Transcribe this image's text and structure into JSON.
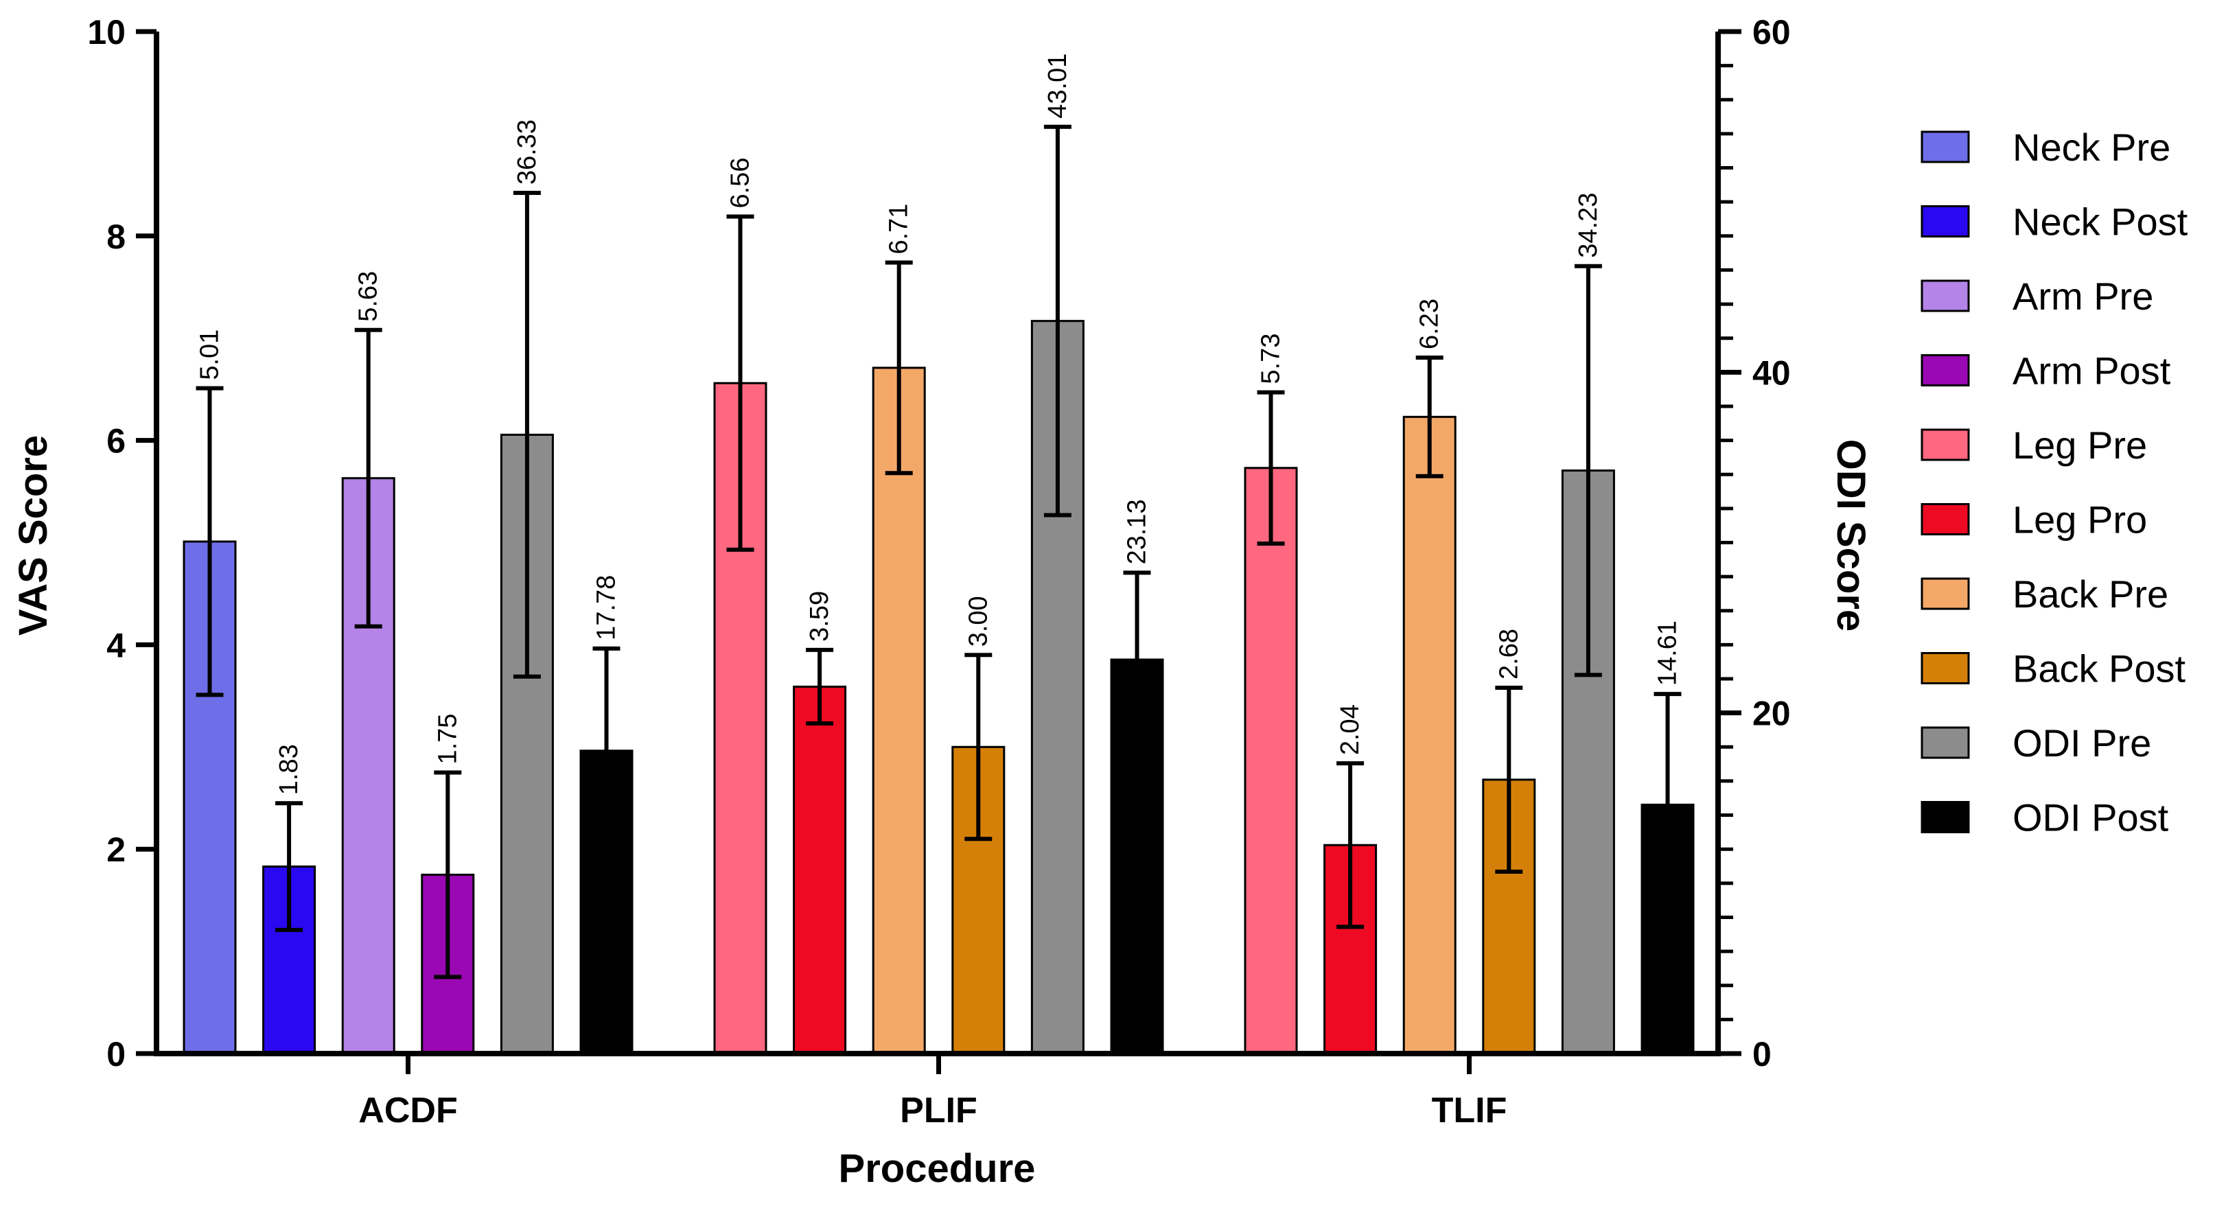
{
  "chart_data": {
    "type": "bar",
    "xlabel": "Procedure",
    "ylabel": "VAS Score",
    "y2label": "ODI Score",
    "ylim": [
      0,
      10
    ],
    "y2lim": [
      0,
      60
    ],
    "yticks": [
      0,
      2,
      4,
      6,
      8,
      10
    ],
    "y2ticks": [
      0,
      20,
      40,
      60
    ],
    "legend_position": "right",
    "groups": [
      {
        "label": "ACDF",
        "bars": [
          {
            "series": "Neck Pre",
            "axis": "left",
            "value": 5.01,
            "error": 1.5,
            "label": "5.01"
          },
          {
            "series": "Neck Post",
            "axis": "left",
            "value": 1.83,
            "error": 0.62,
            "label": "1.83"
          },
          {
            "series": "Arm Pre",
            "axis": "left",
            "value": 5.63,
            "error": 1.45,
            "label": "5.63"
          },
          {
            "series": "Arm Post",
            "axis": "left",
            "value": 1.75,
            "error": 1.0,
            "label": "1.75"
          },
          {
            "series": "ODI Pre",
            "axis": "right",
            "value": 36.33,
            "error": 14.2,
            "label": "36.33"
          },
          {
            "series": "ODI Post",
            "axis": "right",
            "value": 17.78,
            "error": 6.0,
            "label": "17.78"
          }
        ]
      },
      {
        "label": "PLIF",
        "bars": [
          {
            "series": "Leg Pre",
            "axis": "left",
            "value": 6.56,
            "error": 1.63,
            "label": "6.56"
          },
          {
            "series": "Leg Pro",
            "axis": "left",
            "value": 3.59,
            "error": 0.36,
            "label": "3.59"
          },
          {
            "series": "Back Pre",
            "axis": "left",
            "value": 6.71,
            "error": 1.03,
            "label": "6.71"
          },
          {
            "series": "Back Post",
            "axis": "left",
            "value": 3.0,
            "error": 0.9,
            "label": "3.00"
          },
          {
            "series": "ODI Pre",
            "axis": "right",
            "value": 43.01,
            "error": 11.4,
            "label": "43.01"
          },
          {
            "series": "ODI Post",
            "axis": "right",
            "value": 23.13,
            "error": 5.1,
            "label": "23.13"
          }
        ]
      },
      {
        "label": "TLIF",
        "bars": [
          {
            "series": "Leg Pre",
            "axis": "left",
            "value": 5.73,
            "error": 0.74,
            "label": "5.73"
          },
          {
            "series": "Leg Pro",
            "axis": "left",
            "value": 2.04,
            "error": 0.8,
            "label": "2.04"
          },
          {
            "series": "Back Pre",
            "axis": "left",
            "value": 6.23,
            "error": 0.58,
            "label": "6.23"
          },
          {
            "series": "Back Post",
            "axis": "left",
            "value": 2.68,
            "error": 0.9,
            "label": "2.68"
          },
          {
            "series": "ODI Pre",
            "axis": "right",
            "value": 34.23,
            "error": 12.0,
            "label": "34.23"
          },
          {
            "series": "ODI Post",
            "axis": "right",
            "value": 14.61,
            "error": 6.5,
            "label": "14.61"
          }
        ]
      }
    ],
    "legend": [
      {
        "name": "Neck Pre",
        "color": "#6E6EE8"
      },
      {
        "name": "Neck Post",
        "color": "#2A08F0"
      },
      {
        "name": "Arm Pre",
        "color": "#B484E8"
      },
      {
        "name": "Arm Post",
        "color": "#9A08B4"
      },
      {
        "name": "Leg Pre",
        "color": "#FF6880"
      },
      {
        "name": "Leg Pro",
        "color": "#EE0A22"
      },
      {
        "name": "Back Pre",
        "color": "#F4A868"
      },
      {
        "name": "Back Post",
        "color": "#D48008"
      },
      {
        "name": "ODI Pre",
        "color": "#8C8C8C"
      },
      {
        "name": "ODI Post",
        "color": "#000000"
      }
    ]
  }
}
